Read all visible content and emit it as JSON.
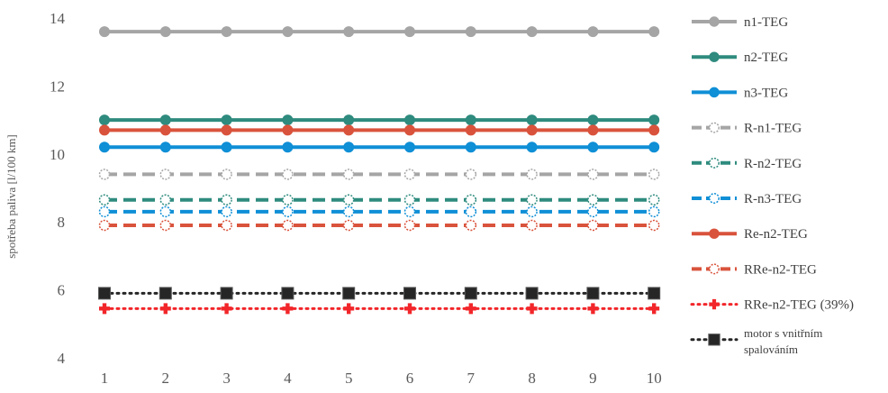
{
  "chart_data": {
    "type": "line",
    "title": "",
    "xlabel": "",
    "ylabel": "spotřeba paliva [l/100 km]",
    "ylim": [
      4,
      14
    ],
    "yticks": [
      4,
      6,
      8,
      10,
      12,
      14
    ],
    "x": [
      1,
      2,
      3,
      4,
      5,
      6,
      7,
      8,
      9,
      10
    ],
    "grid": false,
    "legend_position": "right",
    "series": [
      {
        "name": "n1-TEG",
        "value": 13.6,
        "color": "#a5a5a5",
        "dash": "solid",
        "marker": "filled-circle"
      },
      {
        "name": "n2-TEG",
        "value": 11.0,
        "color": "#2e8b7e",
        "dash": "solid",
        "marker": "filled-circle"
      },
      {
        "name": "n3-TEG",
        "value": 10.2,
        "color": "#0f8fd6",
        "dash": "solid",
        "marker": "filled-circle"
      },
      {
        "name": "R-n1-TEG",
        "value": 9.4,
        "color": "#a5a5a5",
        "dash": "dashed",
        "marker": "open-circle"
      },
      {
        "name": "R-n2-TEG",
        "value": 8.65,
        "color": "#2e8b7e",
        "dash": "dashed",
        "marker": "open-circle"
      },
      {
        "name": "R-n3-TEG",
        "value": 8.3,
        "color": "#0f8fd6",
        "dash": "dashed",
        "marker": "open-circle"
      },
      {
        "name": "Re-n2-TEG",
        "value": 10.7,
        "color": "#d9533c",
        "dash": "solid",
        "marker": "filled-circle"
      },
      {
        "name": "RRe-n2-TEG",
        "value": 7.9,
        "color": "#d9533c",
        "dash": "dashed",
        "marker": "open-circle"
      },
      {
        "name": "RRe-n2-TEG (39%)",
        "value": 5.45,
        "color": "#f2262a",
        "dash": "dotted",
        "marker": "plus"
      },
      {
        "name_lines": [
          "motor s vnitřním",
          "spalováním"
        ],
        "value": 5.9,
        "color": "#262626",
        "dash": "dotted",
        "marker": "square"
      }
    ]
  }
}
